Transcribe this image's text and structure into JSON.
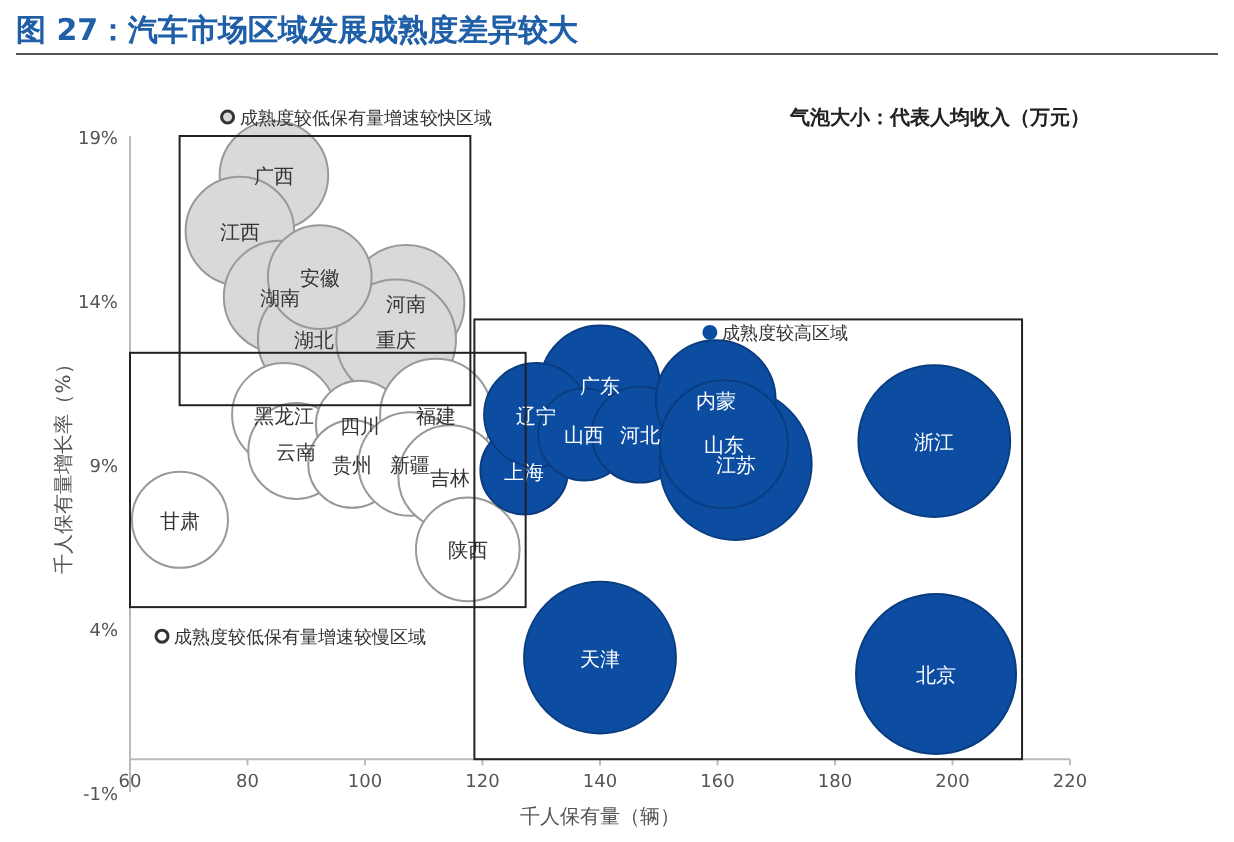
{
  "chart_data": {
    "type": "bubble",
    "title": "图 27：汽车市场区域发展成熟度差异较大",
    "xlabel": "千人保有量（辆）",
    "ylabel": "千人保有量增长率（%）",
    "annotations": [
      "气泡大小：代表人均收入（万元）"
    ],
    "xlim": [
      60,
      220
    ],
    "xticks": [
      60,
      80,
      100,
      120,
      140,
      160,
      180,
      200,
      220
    ],
    "ylim": [
      -1,
      19
    ],
    "yticks": [
      {
        "value": -1,
        "label": "-1%"
      },
      {
        "value": 4,
        "label": "4%"
      },
      {
        "value": 9,
        "label": "9%"
      },
      {
        "value": 14,
        "label": "14%"
      },
      {
        "value": 19,
        "label": "19%"
      }
    ],
    "grid": false,
    "legend": "top",
    "series": [
      {
        "name": "成熟度较低保有量增速较快区域",
        "color": "#d9d9d9",
        "x": [
          84.5,
          78.7,
          85.5,
          91.3,
          107.0,
          105.3,
          92.3
        ],
        "values": [
          17.8,
          16.1,
          14.1,
          12.8,
          13.9,
          12.8,
          14.7
        ],
        "sizes": [
          0.46,
          0.46,
          0.49,
          0.49,
          0.53,
          0.56,
          0.42
        ],
        "value_labels": [
          "广西",
          "江西",
          "湖南",
          "湖北",
          "河南",
          "重庆",
          "安徽"
        ]
      },
      {
        "name": "成熟度较低保有量增速较慢区域",
        "color": "#ffffff",
        "x": [
          68.5,
          86.2,
          88.3,
          99.1,
          97.8,
          112.1,
          107.7,
          114.5,
          117.5
        ],
        "values": [
          7.3,
          10.5,
          9.4,
          10.2,
          9.0,
          10.5,
          9.0,
          8.6,
          6.4
        ],
        "sizes": [
          0.36,
          0.42,
          0.36,
          0.3,
          0.3,
          0.49,
          0.42,
          0.42,
          0.42
        ],
        "value_labels": [
          "甘肃",
          "黑龙江",
          "云南",
          "四川",
          "贵州",
          "福建",
          "新疆",
          "吉林",
          "陕西"
        ]
      },
      {
        "name": "成熟度较高区域",
        "color": "#0c4da2",
        "x": [
          127.1,
          140.0,
          129.1,
          137.3,
          146.8,
          163.1,
          159.7,
          161.1,
          196.9,
          140.0,
          197.2
        ],
        "values": [
          8.8,
          11.4,
          10.5,
          9.9,
          9.9,
          9.0,
          10.95,
          9.6,
          9.7,
          3.1,
          2.6
        ],
        "sizes": [
          0.3,
          0.56,
          0.42,
          0.33,
          0.36,
          0.9,
          0.56,
          0.64,
          0.9,
          0.9,
          1
        ],
        "value_labels": [
          "上海",
          "广东",
          "辽宁",
          "山西",
          "河北",
          "江苏",
          "内蒙",
          "山东",
          "浙江",
          "天津",
          "北京"
        ]
      }
    ]
  }
}
